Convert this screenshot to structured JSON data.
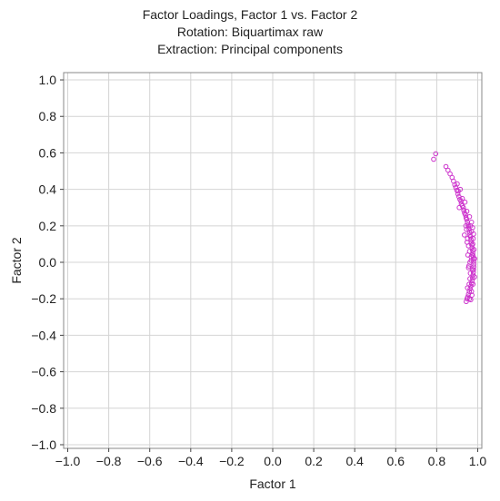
{
  "colors": {
    "points": "#cc33cc",
    "grid": "#d4d4d4",
    "axis": "#444444",
    "text": "#222222"
  },
  "chart_data": {
    "type": "scatter",
    "title": "Factor Loadings, Factor 1 vs. Factor 2",
    "subtitle": [
      "Rotation: Biquartimax raw",
      "Extraction: Principal components"
    ],
    "xlabel": "Factor 1",
    "ylabel": "Factor 2",
    "xlim": [
      -1.02,
      1.02
    ],
    "ylim": [
      -1.02,
      1.04
    ],
    "xticks": [
      -1.0,
      -0.8,
      -0.6,
      -0.4,
      -0.2,
      0.0,
      0.2,
      0.4,
      0.6,
      0.8,
      1.0
    ],
    "xtick_labels": [
      "−1.0",
      "−0.8",
      "−0.6",
      "−0.4",
      "−0.2",
      "0.0",
      "0.2",
      "0.4",
      "0.6",
      "0.8",
      "1.0"
    ],
    "yticks": [
      1.0,
      0.8,
      0.6,
      0.4,
      0.2,
      0.0,
      -0.2,
      -0.4,
      -0.6,
      -0.8,
      -1.0
    ],
    "ytick_labels": [
      "1.0",
      "0.8",
      "0.6",
      "0.4",
      "0.2",
      "0.0",
      "−0.2",
      "−0.4",
      "−0.6",
      "−0.8",
      "−1.0"
    ],
    "grid": true,
    "marker": "open-circle",
    "points": [
      [
        0.795,
        0.595
      ],
      [
        0.785,
        0.565
      ],
      [
        0.845,
        0.525
      ],
      [
        0.855,
        0.505
      ],
      [
        0.865,
        0.485
      ],
      [
        0.875,
        0.465
      ],
      [
        0.882,
        0.445
      ],
      [
        0.888,
        0.425
      ],
      [
        0.893,
        0.41
      ],
      [
        0.898,
        0.395
      ],
      [
        0.905,
        0.39
      ],
      [
        0.903,
        0.375
      ],
      [
        0.908,
        0.36
      ],
      [
        0.913,
        0.345
      ],
      [
        0.918,
        0.335
      ],
      [
        0.92,
        0.32
      ],
      [
        0.925,
        0.31
      ],
      [
        0.93,
        0.3
      ],
      [
        0.932,
        0.285
      ],
      [
        0.936,
        0.27
      ],
      [
        0.94,
        0.26
      ],
      [
        0.943,
        0.245
      ],
      [
        0.946,
        0.235
      ],
      [
        0.95,
        0.22
      ],
      [
        0.953,
        0.205
      ],
      [
        0.955,
        0.195
      ],
      [
        0.958,
        0.18
      ],
      [
        0.96,
        0.165
      ],
      [
        0.962,
        0.15
      ],
      [
        0.965,
        0.14
      ],
      [
        0.967,
        0.125
      ],
      [
        0.969,
        0.11
      ],
      [
        0.971,
        0.095
      ],
      [
        0.973,
        0.08
      ],
      [
        0.975,
        0.065
      ],
      [
        0.976,
        0.05
      ],
      [
        0.978,
        0.035
      ],
      [
        0.979,
        0.02
      ],
      [
        0.98,
        0.005
      ],
      [
        0.981,
        -0.01
      ],
      [
        0.981,
        -0.025
      ],
      [
        0.98,
        -0.04
      ],
      [
        0.979,
        -0.055
      ],
      [
        0.977,
        -0.07
      ],
      [
        0.975,
        -0.085
      ],
      [
        0.973,
        -0.1
      ],
      [
        0.97,
        -0.115
      ],
      [
        0.967,
        -0.13
      ],
      [
        0.963,
        -0.145
      ],
      [
        0.959,
        -0.16
      ],
      [
        0.955,
        -0.175
      ],
      [
        0.951,
        -0.19
      ],
      [
        0.948,
        -0.2
      ],
      [
        0.944,
        -0.215
      ],
      [
        0.972,
        -0.18
      ],
      [
        0.966,
        -0.205
      ],
      [
        0.97,
        0.17
      ],
      [
        0.965,
        0.2
      ],
      [
        0.96,
        0.06
      ],
      [
        0.957,
        -0.02
      ],
      [
        0.962,
        0.0
      ],
      [
        0.968,
        0.03
      ],
      [
        0.974,
        -0.04
      ],
      [
        0.976,
        0.1
      ],
      [
        0.978,
        0.13
      ],
      [
        0.98,
        0.155
      ],
      [
        0.964,
        -0.06
      ],
      [
        0.958,
        -0.12
      ],
      [
        0.95,
        -0.14
      ],
      [
        0.955,
        0.09
      ],
      [
        0.947,
        0.28
      ],
      [
        0.938,
        0.33
      ],
      [
        0.925,
        0.35
      ],
      [
        0.915,
        0.4
      ],
      [
        0.9,
        0.43
      ],
      [
        0.91,
        0.3
      ],
      [
        0.96,
        0.25
      ],
      [
        0.985,
        -0.08
      ],
      [
        0.985,
        0.02
      ],
      [
        0.982,
        0.07
      ],
      [
        0.95,
        0.13
      ],
      [
        0.945,
        0.18
      ],
      [
        0.935,
        0.15
      ],
      [
        0.97,
        -0.16
      ],
      [
        0.96,
        -0.2
      ],
      [
        0.968,
        0.01
      ],
      [
        0.973,
        0.04
      ],
      [
        0.977,
        -0.12
      ],
      [
        0.975,
        0.19
      ],
      [
        0.97,
        0.22
      ],
      [
        0.962,
        -0.09
      ],
      [
        0.955,
        -0.03
      ],
      [
        0.952,
        0.04
      ],
      [
        0.948,
        0.11
      ],
      [
        0.942,
        0.2
      ]
    ]
  }
}
